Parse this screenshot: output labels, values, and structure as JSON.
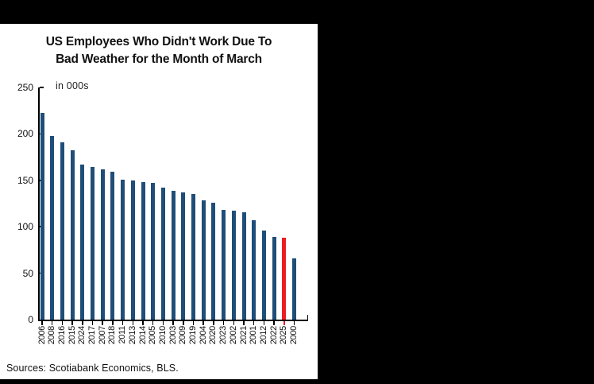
{
  "title": {
    "line1": "US Employees Who Didn't Work Due To",
    "line2": "Bad Weather for the Month of March"
  },
  "chart_data": {
    "type": "bar",
    "title": "US Employees Who Didn't Work Due To Bad Weather for the Month of March",
    "annotation": "in 000s",
    "ylabel": "",
    "xlabel": "",
    "ylim": [
      0,
      250
    ],
    "yticks": [
      250,
      200,
      150,
      100,
      50,
      0
    ],
    "grid": false,
    "legend": "none",
    "categories": [
      "2006",
      "2008",
      "2016",
      "2015",
      "2024",
      "2017",
      "2007",
      "2018",
      "2011",
      "2013",
      "2014",
      "2005",
      "2010",
      "2003",
      "2009",
      "2019",
      "2004",
      "2020",
      "2023",
      "2002",
      "2021",
      "2001",
      "2012",
      "2022",
      "2025",
      "2000"
    ],
    "values": [
      223,
      198,
      191,
      182,
      167,
      164,
      162,
      159,
      151,
      150,
      148,
      147,
      142,
      139,
      137,
      135,
      128,
      126,
      118,
      117,
      116,
      107,
      96,
      89,
      88,
      66
    ],
    "highlight_category": "2025",
    "bar_color": "#1f4e79",
    "highlight_color": "#ed1c24",
    "source": "Sources: Scotiabank Economics, BLS."
  }
}
